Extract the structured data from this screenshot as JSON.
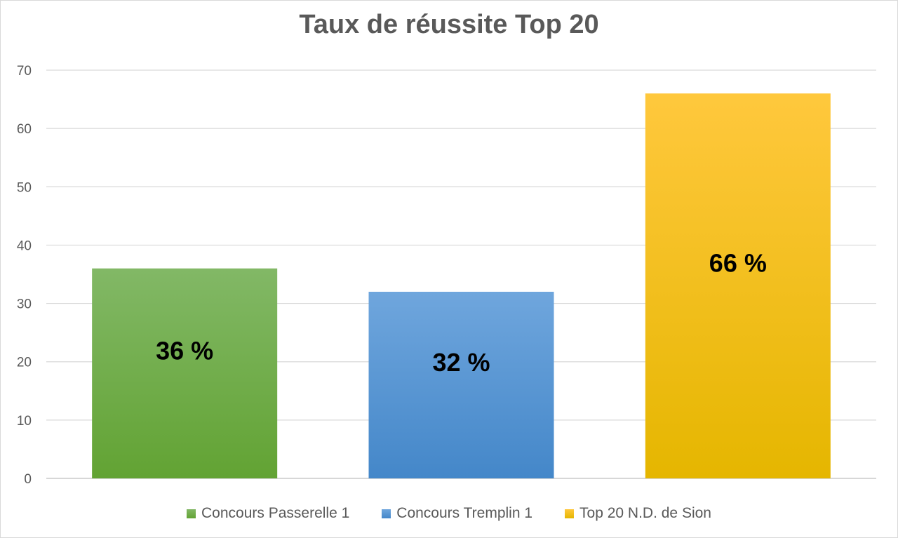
{
  "chart_data": {
    "type": "bar",
    "title": "Taux de réussite Top 20",
    "xlabel": "",
    "ylabel": "",
    "ylim": [
      0,
      70
    ],
    "yticks": [
      0,
      10,
      20,
      30,
      40,
      50,
      60,
      70
    ],
    "grid": true,
    "legend_position": "bottom",
    "categories": [
      "Concours Passerelle 1",
      "Concours Tremplin 1",
      "Top 20 N.D. de Sion"
    ],
    "values": [
      36,
      32,
      66
    ],
    "data_labels": [
      "36 %",
      "32 %",
      "66 %"
    ],
    "colors": [
      {
        "top": "#82b866",
        "bottom": "#62a333"
      },
      {
        "top": "#6fa6dd",
        "bottom": "#4487c9"
      },
      {
        "top": "#ffc83d",
        "bottom": "#e5b600"
      }
    ],
    "legend": [
      "Concours Passerelle 1",
      "Concours Tremplin 1",
      "Top 20 N.D. de Sion"
    ]
  }
}
